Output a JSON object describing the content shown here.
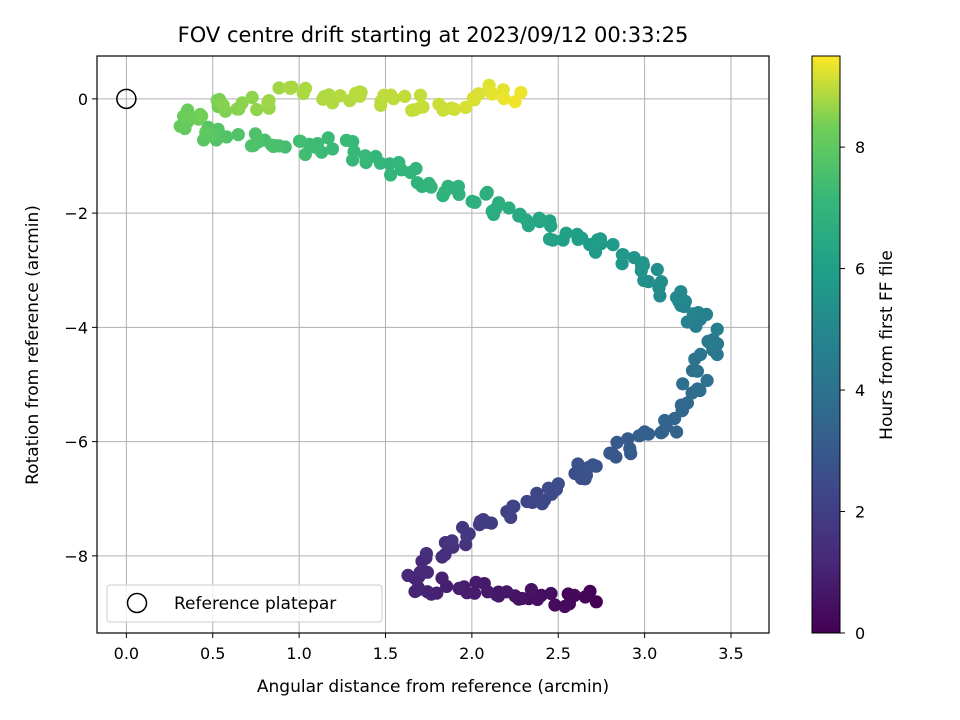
{
  "chart_data": {
    "type": "scatter",
    "title": "FOV centre drift starting at 2023/09/12 00:33:25",
    "xlabel": "Angular distance from reference (arcmin)",
    "ylabel": "Rotation from reference (arcmin)",
    "xlim": [
      -0.17,
      3.72
    ],
    "ylim": [
      -9.35,
      0.75
    ],
    "xticks": [
      0.0,
      0.5,
      1.0,
      1.5,
      2.0,
      2.5,
      3.0,
      3.5
    ],
    "xtick_labels": [
      "0.0",
      "0.5",
      "1.0",
      "1.5",
      "2.0",
      "2.5",
      "3.0",
      "3.5"
    ],
    "yticks": [
      0,
      -2,
      -4,
      -6,
      -8
    ],
    "ytick_labels": [
      "0",
      "−2",
      "−4",
      "−6",
      "−8"
    ],
    "grid": true,
    "colormap": "viridis",
    "colorbar": {
      "label": "Hours from first FF file",
      "range": [
        0,
        9.5
      ],
      "ticks": [
        0,
        2,
        4,
        6,
        8
      ],
      "tick_labels": [
        "0",
        "2",
        "4",
        "6",
        "8"
      ]
    },
    "legend": {
      "position": "lower-left",
      "entries": [
        "Reference platepar"
      ]
    },
    "reference_point": {
      "x": 0.0,
      "y": 0.0
    },
    "waypoints": [
      [
        2.7,
        -8.75,
        0.0
      ],
      [
        2.5,
        -8.8,
        0.3
      ],
      [
        2.2,
        -8.65,
        0.6
      ],
      [
        1.9,
        -8.5,
        0.9
      ],
      [
        1.65,
        -8.55,
        1.1
      ],
      [
        1.75,
        -8.1,
        1.3
      ],
      [
        1.9,
        -7.8,
        1.6
      ],
      [
        2.1,
        -7.45,
        1.9
      ],
      [
        2.3,
        -7.1,
        2.2
      ],
      [
        2.55,
        -6.75,
        2.5
      ],
      [
        2.75,
        -6.3,
        2.8
      ],
      [
        2.95,
        -6.05,
        3.1
      ],
      [
        3.15,
        -5.7,
        3.4
      ],
      [
        3.25,
        -5.2,
        3.7
      ],
      [
        3.3,
        -4.8,
        4.0
      ],
      [
        3.4,
        -4.4,
        4.3
      ],
      [
        3.35,
        -3.95,
        4.6
      ],
      [
        3.2,
        -3.6,
        4.9
      ],
      [
        3.1,
        -3.2,
        5.2
      ],
      [
        2.95,
        -2.85,
        5.5
      ],
      [
        2.75,
        -2.6,
        5.8
      ],
      [
        2.5,
        -2.35,
        6.1
      ],
      [
        2.25,
        -2.05,
        6.4
      ],
      [
        2.1,
        -1.8,
        6.7
      ],
      [
        1.85,
        -1.55,
        6.9
      ],
      [
        1.25,
        -0.8,
        7.2
      ],
      [
        1.0,
        -0.85,
        7.4
      ],
      [
        0.75,
        -0.8,
        7.6
      ],
      [
        0.55,
        -0.6,
        7.8
      ],
      [
        0.4,
        -0.55,
        8.0
      ],
      [
        0.3,
        -0.35,
        8.2
      ],
      [
        0.5,
        -0.1,
        8.4
      ],
      [
        0.75,
        -0.05,
        8.6
      ],
      [
        1.0,
        0.12,
        8.8
      ],
      [
        1.9,
        -0.15,
        9.1
      ],
      [
        2.1,
        0.1,
        9.25
      ],
      [
        2.25,
        -0.05,
        9.4
      ]
    ]
  }
}
